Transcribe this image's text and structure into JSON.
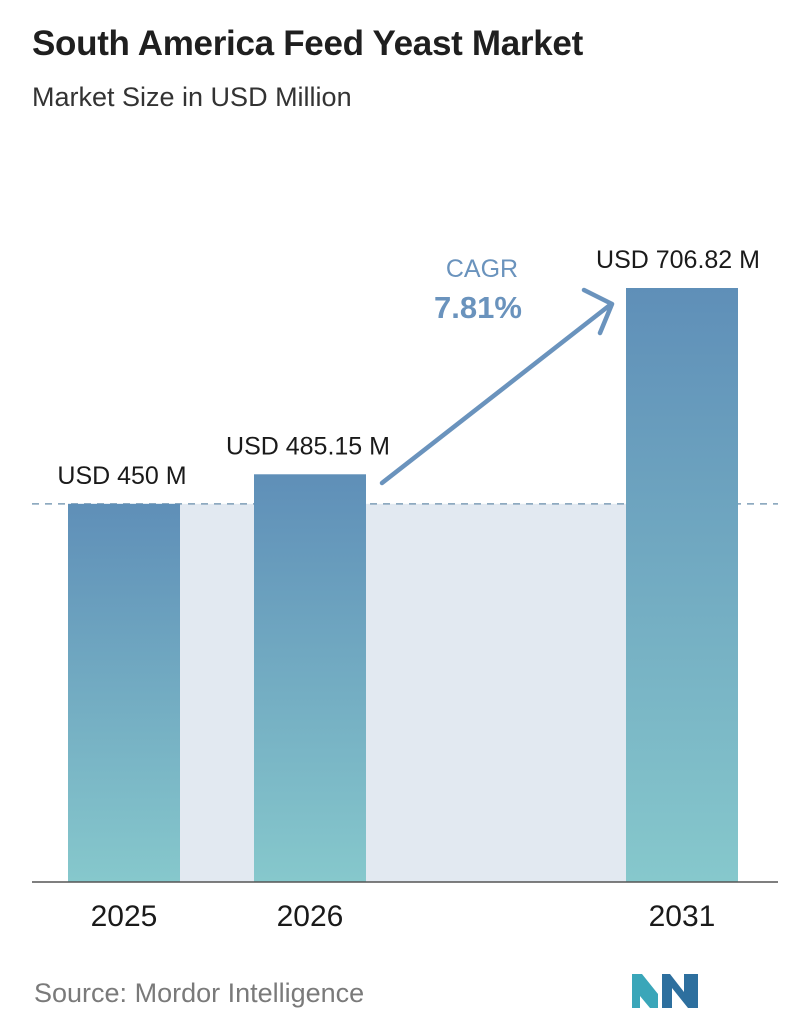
{
  "header": {
    "title": "South America Feed Yeast Market",
    "subtitle": "Market Size in USD Million"
  },
  "chart_data": {
    "type": "bar",
    "categories": [
      "2025",
      "2026",
      "2031"
    ],
    "values": [
      450,
      485.15,
      706.82
    ],
    "data_labels": [
      "USD 450 M",
      "USD 485.15 M",
      "USD 706.82 M"
    ],
    "cagr_label": "CAGR",
    "cagr_value": "7.81%",
    "reference_line_value": 450,
    "grid": false,
    "legend": "none"
  },
  "source": {
    "label": "Source:",
    "name": "Mordor Intelligence"
  },
  "colors": {
    "bar_top": "#5f8fb8",
    "bar_bottom": "#86c8cc",
    "band": "#e2e9f1",
    "cagr": "#6a93bd",
    "axis": "#555555"
  },
  "logo": {
    "icon": "mordor-intelligence-logo-icon"
  }
}
